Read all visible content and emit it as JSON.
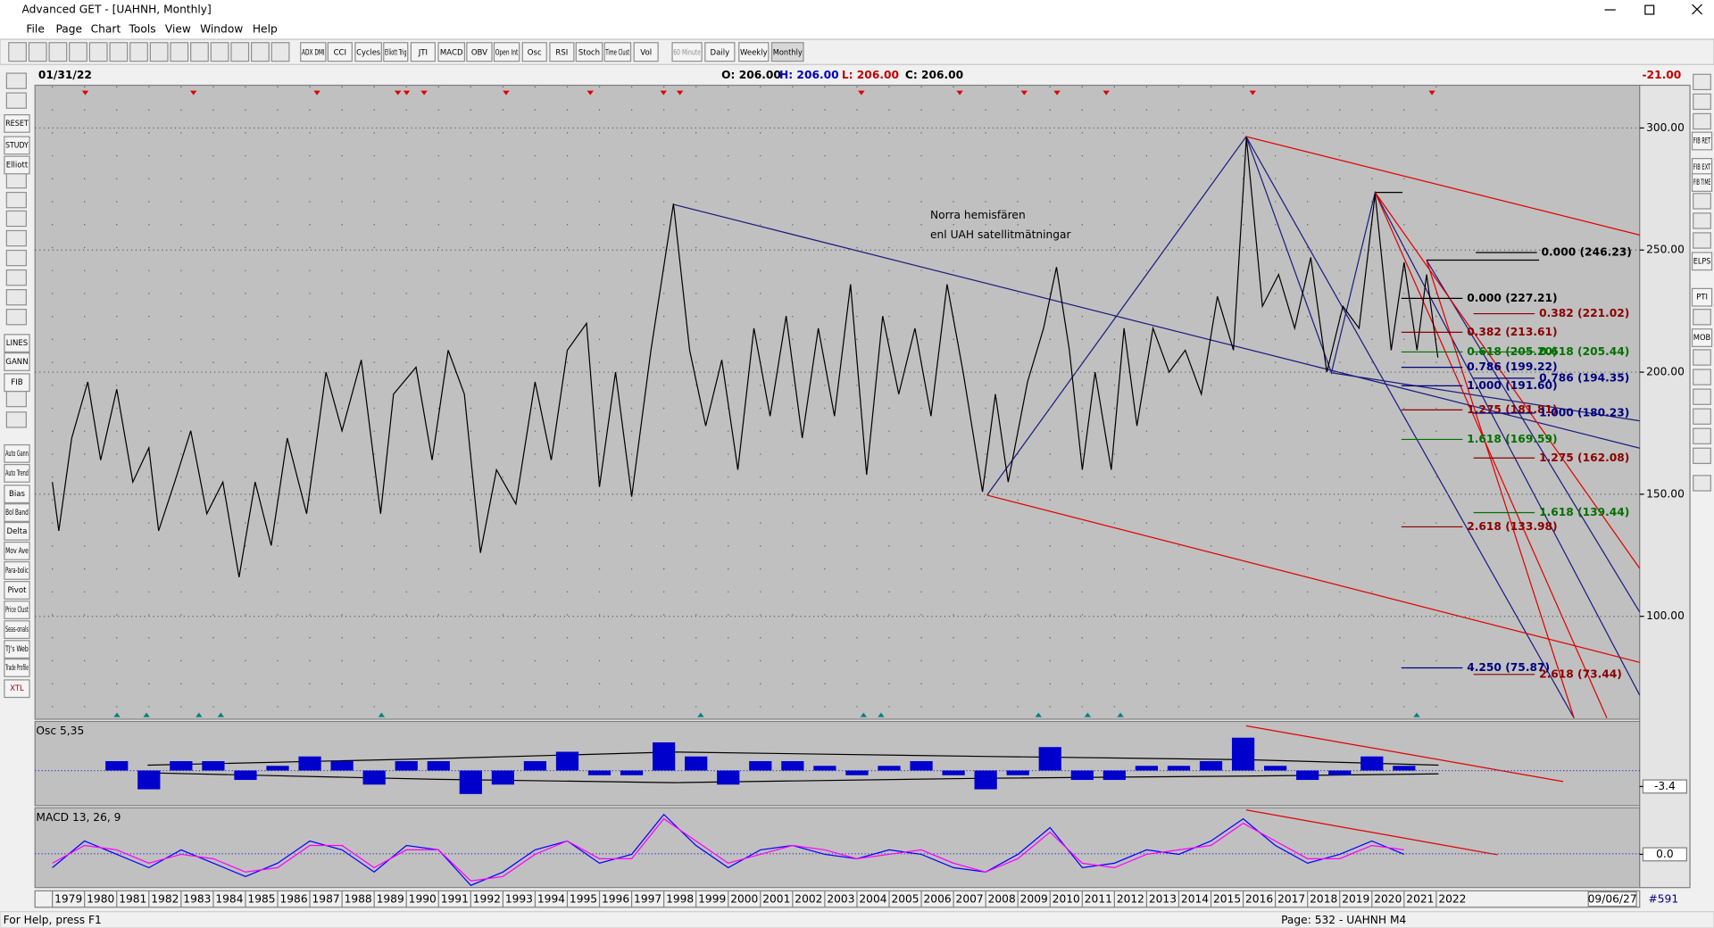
{
  "window": {
    "title": "Advanced GET - [UAHNH, Monthly]"
  },
  "menu": [
    "File",
    "Page",
    "Chart",
    "Tools",
    "View",
    "Window",
    "Help"
  ],
  "toolbar": [
    "ADX DMI",
    "CCI",
    "Cycles",
    "Elliott Trig",
    "JTI",
    "MACD",
    "OBV",
    "Open Int",
    "Osc",
    "RSI",
    "Stoch",
    "Time Clust",
    "Vol",
    "60 Minute",
    "Daily",
    "Weekly",
    "Monthly"
  ],
  "left_tools": [
    "RESET",
    "STUDY",
    "Elliott",
    "LINES",
    "GANN",
    "FIB",
    "Auto Gann",
    "Auto Trend",
    "Bias",
    "Bol Band",
    "Delta",
    "Mov Ave",
    "Para-bolic",
    "Pivot",
    "Price Clust",
    "Seas-onals",
    "TJ's Web",
    "Trade Profile",
    "XTL"
  ],
  "right_tools": [
    "FIB RET",
    "FIB EXT",
    "FIB TIME",
    "ELPS",
    "PTI",
    "MOB"
  ],
  "header": {
    "date": "01/31/22",
    "open": "O: 206.00",
    "high": "H: 206.00",
    "low": "L: 206.00",
    "close": "C: 206.00",
    "change": "-21.00"
  },
  "annotations": [
    "Norra hemisfären",
    "enl UAH satellitmätningar"
  ],
  "fib_labels": [
    {
      "text": "0.000 (246.23)",
      "color": "#000000"
    },
    {
      "text": "0.000 (227.21)",
      "color": "#000000"
    },
    {
      "text": "0.382 (221.02)",
      "color": "#8b0000"
    },
    {
      "text": "0.382 (213.61)",
      "color": "#8b0000"
    },
    {
      "text": "0.618 (205.20)",
      "color": "#007000"
    },
    {
      "text": "0.618 (205.44)",
      "color": "#007000"
    },
    {
      "text": "0.786 (199.22)",
      "color": "#000080"
    },
    {
      "text": "0.786 (194.35)",
      "color": "#000080"
    },
    {
      "text": "1.000 (191.60)",
      "color": "#000080"
    },
    {
      "text": "1.275 (181.81)",
      "color": "#8b0000"
    },
    {
      "text": "1.000 (180.23)",
      "color": "#000080"
    },
    {
      "text": "1.618 (169.59)",
      "color": "#007000"
    },
    {
      "text": "1.275 (162.08)",
      "color": "#8b0000"
    },
    {
      "text": "1.618 (139.44)",
      "color": "#007000"
    },
    {
      "text": "2.618 (133.98)",
      "color": "#8b0000"
    },
    {
      "text": "4.250 (75.87)",
      "color": "#000080"
    },
    {
      "text": "2.618 (73.44)",
      "color": "#8b0000"
    }
  ],
  "chart_data": [
    {
      "type": "line",
      "color": "#000000",
      "grid": true,
      "x": [
        1979.0,
        1979.2,
        1979.6,
        1980.1,
        1980.5,
        1981,
        1981.5,
        1982,
        1982.3,
        1982.8,
        1983.3,
        1983.8,
        1984.3,
        1984.8,
        1985.3,
        1985.8,
        1986.3,
        1986.9,
        1987.5,
        1988,
        1988.6,
        1989.2,
        1989.6,
        1990.3,
        1990.8,
        1991.3,
        1991.8,
        1992.3,
        1992.8,
        1993.4,
        1994,
        1994.5,
        1995,
        1995.6,
        1996,
        1996.5,
        1997,
        1997.6,
        1998.3,
        1998.8,
        1999.3,
        1999.8,
        2000.3,
        2000.8,
        2001.3,
        2001.8,
        2002.3,
        2002.8,
        2003.3,
        2003.8,
        2004.3,
        2004.8,
        2005.3,
        2005.8,
        2006.3,
        2006.8,
        2007.3,
        2007.9,
        2008.3,
        2008.7,
        2009.3,
        2009.8,
        2010.2,
        2010.6,
        2011,
        2011.4,
        2011.9,
        2012.3,
        2012.7,
        2013.2,
        2013.7,
        2014.2,
        2014.7,
        2015.2,
        2015.7,
        2016.1,
        2016.6,
        2017.1,
        2017.6,
        2018.1,
        2018.6,
        2019.1,
        2019.6,
        2020.1,
        2020.6,
        2021,
        2021.4,
        2021.7,
        2022.05
      ],
      "values": [
        155,
        135,
        173,
        196,
        164,
        193,
        155,
        169,
        135,
        155,
        176,
        142,
        155,
        116,
        155,
        129,
        173,
        142,
        200,
        176,
        205,
        142,
        191,
        202,
        164,
        209,
        191,
        126,
        160,
        146,
        196,
        164,
        209,
        220,
        153,
        200,
        149,
        209,
        269,
        209,
        178,
        205,
        160,
        218,
        182,
        223,
        173,
        218,
        182,
        236,
        158,
        223,
        191,
        218,
        182,
        236,
        200,
        151,
        191,
        155,
        196,
        218,
        243,
        209,
        160,
        200,
        160,
        218,
        178,
        218,
        200,
        209,
        191,
        231,
        209,
        296,
        227,
        240,
        218,
        247,
        200,
        227,
        218,
        273,
        209,
        245,
        209,
        240,
        206
      ],
      "xlim": [
        1978.46,
        2028.32
      ],
      "ylim": [
        58.3,
        317.5
      ],
      "xticks": [
        1979,
        1980,
        1981,
        1982,
        1983,
        1984,
        1985,
        1986,
        1987,
        1988,
        1989,
        1990,
        1991,
        1992,
        1993,
        1994,
        1995,
        1996,
        1997,
        1998,
        1999,
        2000,
        2001,
        2002,
        2003,
        2004,
        2005,
        2006,
        2007,
        2008,
        2009,
        2010,
        2011,
        2012,
        2013,
        2014,
        2015,
        2016,
        2017,
        2018,
        2019,
        2020,
        2021,
        2022
      ],
      "yticks": [
        {
          "value": 300,
          "label": "300.00"
        },
        {
          "value": 250,
          "label": "250.00"
        },
        {
          "value": 200,
          "label": "200.00"
        },
        {
          "value": 150,
          "label": "150.00"
        },
        {
          "value": 100,
          "label": "100.00"
        }
      ]
    },
    {
      "type": "bar",
      "title": "Osc 5,35",
      "color": "#0000cc",
      "x": [
        1981,
        1982,
        1983,
        1984,
        1985,
        1986,
        1987,
        1988,
        1989,
        1990,
        1991,
        1992,
        1993,
        1994,
        1995,
        1996,
        1997,
        1998,
        1999,
        2000,
        2001,
        2002,
        2003,
        2004,
        2005,
        2006,
        2007,
        2008,
        2009,
        2010,
        2011,
        2012,
        2013,
        2014,
        2015,
        2016,
        2017,
        2018,
        2019,
        2020,
        2021
      ],
      "values": [
        2,
        -4,
        2,
        2,
        -2,
        1,
        3,
        2,
        -3,
        2,
        2,
        -5,
        -3,
        2,
        4,
        -1,
        -1,
        6,
        3,
        -3,
        2,
        2,
        1,
        -1,
        1,
        2,
        -1,
        -4,
        -1,
        5,
        -2,
        -2,
        1,
        1,
        2,
        7,
        1,
        -2,
        -1,
        3,
        1
      ],
      "ylim": [
        -7,
        10
      ],
      "yticks": [
        {
          "value": -3.4,
          "label": "-3.4"
        }
      ]
    },
    {
      "type": "line",
      "title": "MACD 13, 26, 9",
      "x": [
        1979,
        1980,
        1981,
        1982,
        1983,
        1984,
        1985,
        1986,
        1987,
        1988,
        1989,
        1990,
        1991,
        1992,
        1993,
        1994,
        1995,
        1996,
        1997,
        1998,
        1999,
        2000,
        2001,
        2002,
        2003,
        2004,
        2005,
        2006,
        2007,
        2008,
        2009,
        2010,
        2011,
        2012,
        2013,
        2014,
        2015,
        2016,
        2017,
        2018,
        2019,
        2020,
        2021
      ],
      "series": [
        {
          "color": "#0000ff",
          "values": [
            -3,
            3,
            0,
            -3,
            1,
            -2,
            -5,
            -2,
            3,
            1,
            -4,
            2,
            1,
            -7,
            -4,
            1,
            3,
            -2,
            0,
            9,
            2,
            -3,
            1,
            2,
            0,
            -1,
            1,
            0,
            -3,
            -4,
            0,
            6,
            -3,
            -2,
            1,
            0,
            3,
            8,
            2,
            -2,
            0,
            3,
            0
          ]
        },
        {
          "color": "#ff00ff",
          "values": [
            -2,
            2,
            1,
            -2,
            0,
            -1,
            -4,
            -3,
            2,
            2,
            -3,
            1,
            1,
            -6,
            -5,
            0,
            3,
            -1,
            -1,
            8,
            3,
            -2,
            0,
            2,
            1,
            -1,
            0,
            1,
            -2,
            -4,
            -1,
            5,
            -2,
            -3,
            0,
            1,
            2,
            7,
            3,
            -1,
            -1,
            2,
            1
          ]
        }
      ],
      "ylim": [
        -7,
        10
      ],
      "yticks": [
        {
          "value": 0,
          "label": "0.0"
        }
      ]
    }
  ],
  "bottom": {
    "end_date": "09/06/27",
    "count": "#591"
  },
  "status": {
    "help": "For Help, press F1",
    "page": "Page: 532 - UAHNH M4"
  }
}
